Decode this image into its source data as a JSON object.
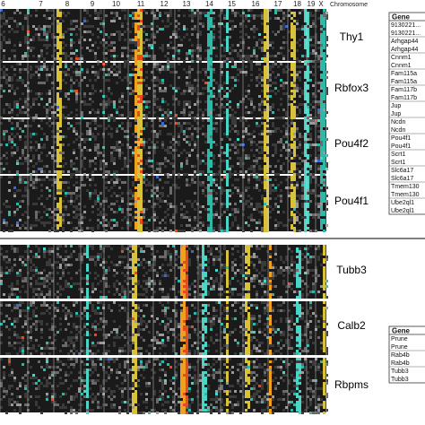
{
  "chart_data": {
    "type": "heatmap",
    "axis_title": "Chromosome",
    "chromosomes": [
      "6",
      "7",
      "8",
      "9",
      "10",
      "11",
      "12",
      "13",
      "14",
      "15",
      "16",
      "17",
      "18",
      "19",
      "X"
    ],
    "panels": [
      {
        "name": "top",
        "blocks": [
          {
            "gene": "Thy1"
          },
          {
            "gene": "Rbfox3"
          },
          {
            "gene": "Pou4f2"
          },
          {
            "gene": "Pou4f1"
          }
        ],
        "table": {
          "header": "Gene",
          "rows": [
            [
              "9130221...",
              "9130221..."
            ],
            [
              "Arhgap44",
              "Arhgap44"
            ],
            [
              "Cnnm1",
              "Cnnm1"
            ],
            [
              "Fam115a",
              "Fam115a"
            ],
            [
              "Fam117b",
              "Fam117b"
            ],
            [
              "Jup",
              "Jup"
            ],
            [
              "Ncdn",
              "Ncdn"
            ],
            [
              "Pou4f1",
              "Pou4f1"
            ],
            [
              "Scrt1",
              "Scrt1"
            ],
            [
              "Slc6a17",
              "Slc6a17"
            ],
            [
              "Tmem130",
              "Tmem130"
            ],
            [
              "Ube2ql1",
              "Ube2ql1"
            ]
          ]
        }
      },
      {
        "name": "bottom",
        "blocks": [
          {
            "gene": "Tubb3"
          },
          {
            "gene": "Calb2"
          },
          {
            "gene": "Rbpms"
          }
        ],
        "table": {
          "header": "Gene",
          "rows": [
            [
              "Prune",
              "Prune"
            ],
            [
              "Rab4b",
              "Rab4b"
            ],
            [
              "Tubb3",
              "Tubb3"
            ]
          ]
        }
      }
    ],
    "colorscale": [
      "#141414",
      "#3a3a3a",
      "#6a6a6a",
      "#9a9a9a",
      "#2fb8a8",
      "#49d6c6",
      "#d8c23a",
      "#f0a020",
      "#e84a20",
      "#3a6ad0"
    ]
  }
}
